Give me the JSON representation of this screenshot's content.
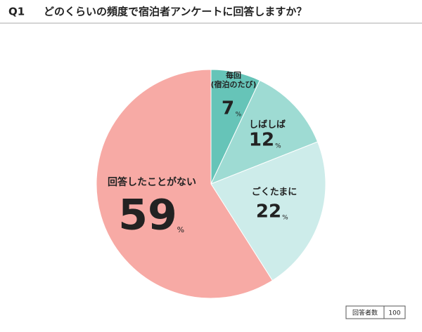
{
  "chart_data": {
    "type": "pie",
    "question_number": "Q1",
    "title": "どのくらいの頻度で宿泊者アンケートに回答しますか？",
    "categories": [
      "毎回\n(宿泊のたび)",
      "しばしば",
      "ごくたまに",
      "回答したことがない"
    ],
    "values": [
      7,
      12,
      22,
      59
    ],
    "unit": "%",
    "colors": [
      "#66c4b8",
      "#9edbd3",
      "#cdecea",
      "#f7aaa5"
    ],
    "respondents_label": "回答者数",
    "respondents": 100
  }
}
